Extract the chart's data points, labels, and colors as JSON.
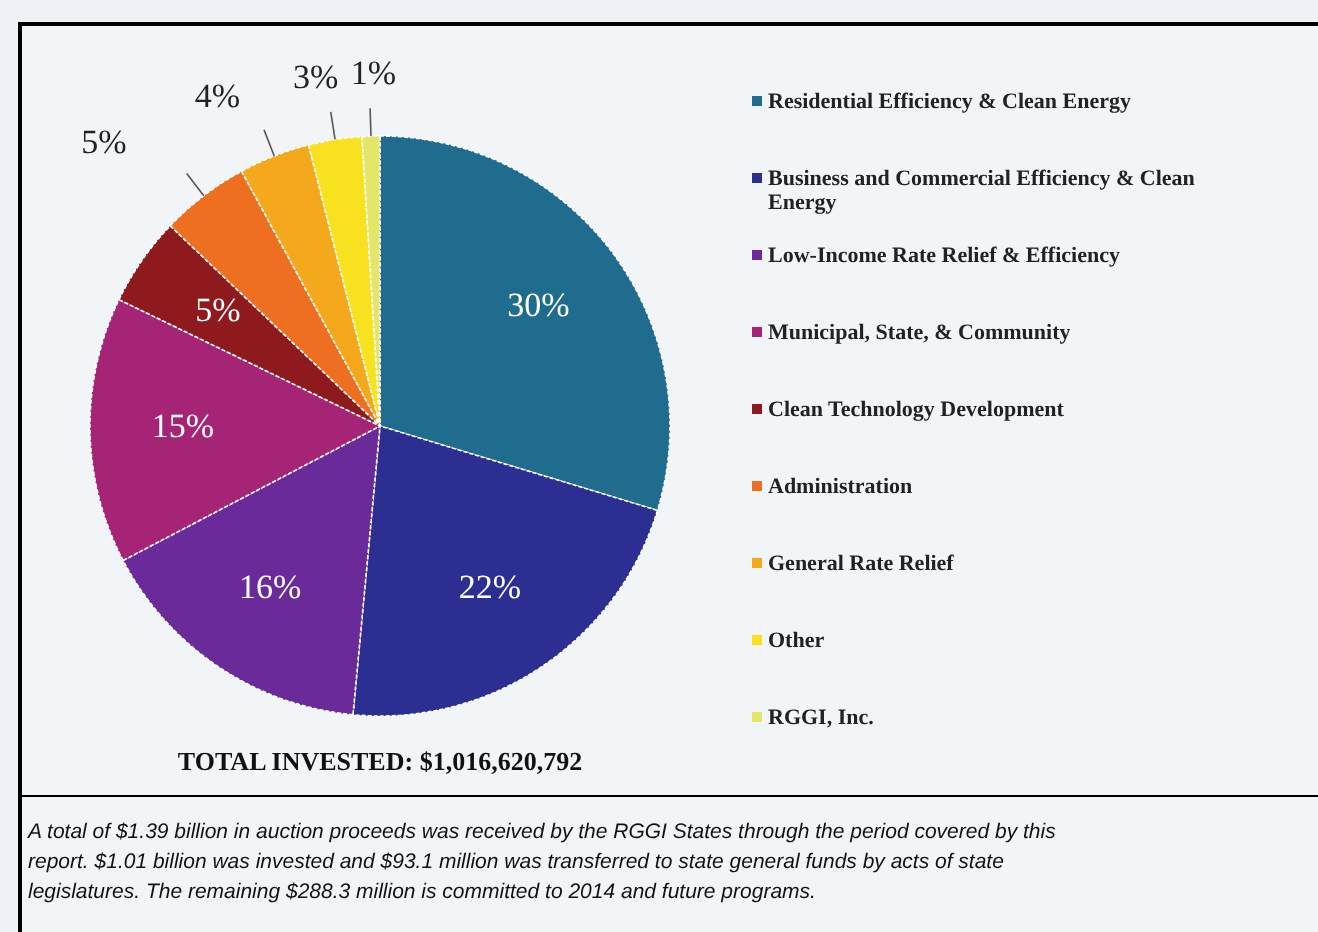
{
  "chart_data": {
    "type": "pie",
    "categories": [
      "Residential Efficiency & Clean Energy",
      "Business and Commercial Efficiency & Clean Energy",
      "Low-Income Rate Relief & Efficiency",
      "Municipal, State, & Community",
      "Clean Technology Development",
      "Administration",
      "General Rate Relief",
      "Other",
      "RGGI, Inc."
    ],
    "values": [
      30,
      22,
      16,
      15,
      5,
      5,
      4,
      3,
      1
    ],
    "value_labels": [
      "30%",
      "22%",
      "16%",
      "15%",
      "5%",
      "5%",
      "4%",
      "3%",
      "1%"
    ],
    "colors": [
      "#1f6c8f",
      "#2c2e92",
      "#6a2a9a",
      "#a52475",
      "#8e1a1e",
      "#ee6f1f",
      "#f4a91c",
      "#f8e11e",
      "#e4e66a"
    ],
    "legend": "right",
    "annotations": [
      "TOTAL INVESTED: $1,016,620,792",
      "A total of $1.39 billion in auction proceeds was received by the RGGI States through the period covered by this report. $1.01 billion was invested and $93.1 million was transferred to state general funds by acts of state legislatures. The remaining $288.3 million is committed to 2014 and future programs."
    ]
  }
}
